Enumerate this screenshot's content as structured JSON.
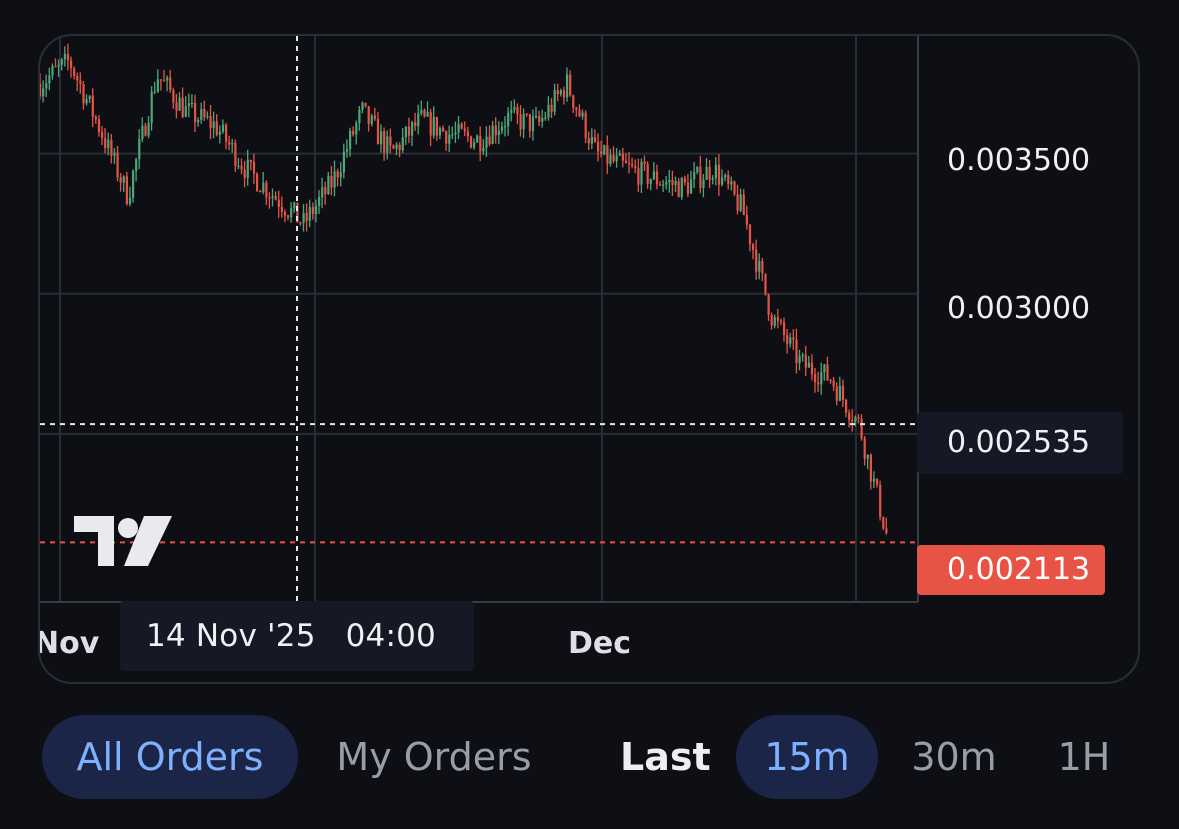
{
  "colors": {
    "background": "#0e0f15",
    "up": "#4ea77a",
    "down": "#e75446",
    "grid": "#2a2c33",
    "accent": "#7fb0ff",
    "active_pill": "#1b2547"
  },
  "chart_data": {
    "type": "candlestick",
    "interval": "15m",
    "ylim": [
      0.0019,
      0.00392
    ],
    "y_ticks": [
      "0.003500",
      "0.003000"
    ],
    "x_ticks": [
      "Nov",
      "Dec"
    ],
    "grid": true,
    "crosshair": {
      "time_label": {
        "date": "14 Nov '25",
        "time": "04:00"
      },
      "price_label": "0.002535"
    },
    "last_price_label": "0.002113",
    "close_path": [
      {
        "t": "2025-11-09",
        "close": 0.00375
      },
      {
        "t": "2025-11-10",
        "close": 0.00383
      },
      {
        "t": "2025-11-11",
        "close": 0.0036
      },
      {
        "t": "2025-11-12",
        "close": 0.00335
      },
      {
        "t": "2025-11-13",
        "close": 0.00378
      },
      {
        "t": "2025-11-14",
        "close": 0.00365
      },
      {
        "t": "2025-11-15",
        "close": 0.0036
      },
      {
        "t": "2025-11-16",
        "close": 0.00345
      },
      {
        "t": "2025-11-17",
        "close": 0.00335
      },
      {
        "t": "2025-11-18",
        "close": 0.00325
      },
      {
        "t": "2025-11-19",
        "close": 0.0034
      },
      {
        "t": "2025-11-20",
        "close": 0.00365
      },
      {
        "t": "2025-11-21",
        "close": 0.0035
      },
      {
        "t": "2025-11-22",
        "close": 0.00362
      },
      {
        "t": "2025-11-23",
        "close": 0.00357
      },
      {
        "t": "2025-11-24",
        "close": 0.00355
      },
      {
        "t": "2025-11-25",
        "close": 0.00363
      },
      {
        "t": "2025-11-26",
        "close": 0.0036
      },
      {
        "t": "2025-11-27",
        "close": 0.00375
      },
      {
        "t": "2025-11-28",
        "close": 0.0035
      },
      {
        "t": "2025-11-29",
        "close": 0.00345
      },
      {
        "t": "2025-11-30",
        "close": 0.00341
      },
      {
        "t": "2025-12-01",
        "close": 0.00338
      },
      {
        "t": "2025-12-02",
        "close": 0.00345
      },
      {
        "t": "2025-12-03",
        "close": 0.0033
      },
      {
        "t": "2025-12-04",
        "close": 0.00292
      },
      {
        "t": "2025-12-05",
        "close": 0.00275
      },
      {
        "t": "2025-12-06",
        "close": 0.0027
      },
      {
        "t": "2025-12-07",
        "close": 0.00253
      },
      {
        "t": "2025-12-08",
        "close": 0.00211
      }
    ]
  },
  "tabs": {
    "all_orders": "All Orders",
    "my_orders": "My Orders",
    "last_label": "Last",
    "intervals": [
      "15m",
      "30m",
      "1H"
    ],
    "active_interval": "15m"
  }
}
